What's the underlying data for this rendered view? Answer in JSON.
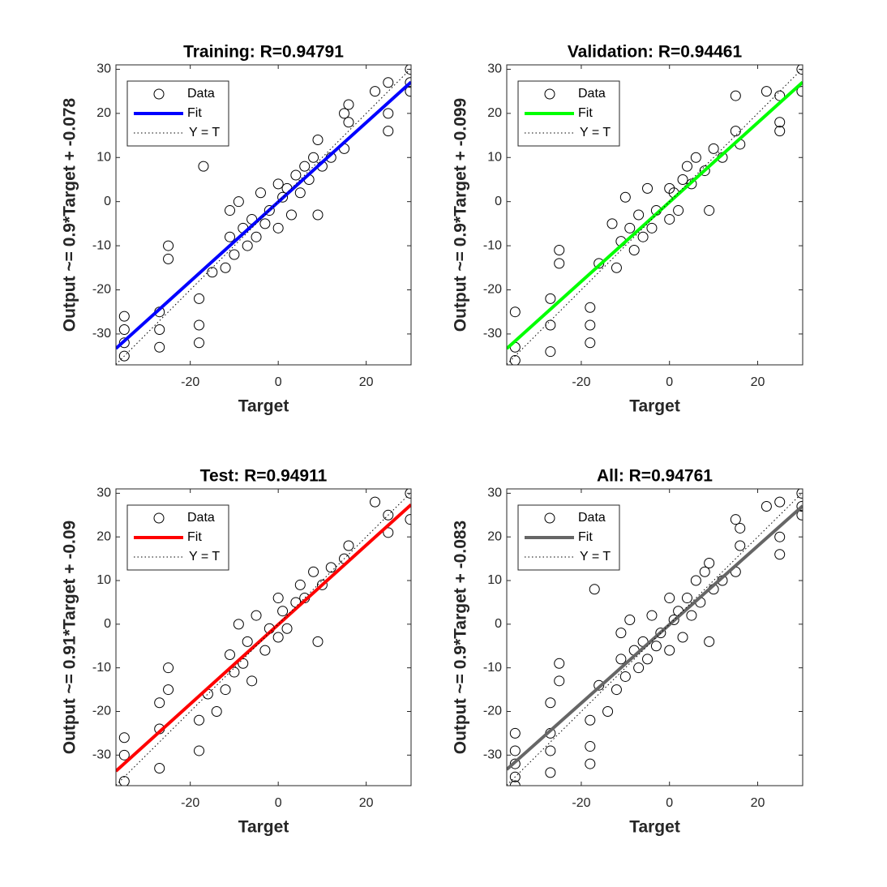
{
  "chart_data": [
    {
      "type": "regression",
      "title": "Training: R=0.94791",
      "xlabel": "Target",
      "ylabel": "Output ~= 0.9*Target + -0.078",
      "xlim": [
        -36.9,
        30.2
      ],
      "ylim": [
        -37,
        31
      ],
      "xticks": [
        -20,
        0,
        20
      ],
      "yticks": [
        -30,
        -20,
        -10,
        0,
        10,
        20,
        30
      ],
      "legend": "northwest",
      "grid": false,
      "series": [
        {
          "name": "Data",
          "kind": "scatter",
          "color": "#000000",
          "x": [
            -35,
            -35,
            -35,
            -35,
            -27,
            -27,
            -27,
            -25,
            -25,
            -18,
            -18,
            -18,
            -17,
            -15,
            -12,
            -11,
            -11,
            -10,
            -9,
            -8,
            -7,
            -6,
            -5,
            -4,
            -3,
            -2,
            0,
            0,
            1,
            2,
            3,
            4,
            5,
            6,
            7,
            8,
            9,
            9,
            10,
            12,
            15,
            15,
            16,
            16,
            22,
            25,
            25,
            25,
            30,
            30,
            30
          ],
          "values": [
            -35,
            -32,
            -29,
            -26,
            -33,
            -29,
            -25,
            -13,
            -10,
            -32,
            -28,
            -22,
            8,
            -16,
            -15,
            -8,
            -2,
            -12,
            0,
            -6,
            -10,
            -4,
            -8,
            2,
            -5,
            -2,
            -6,
            4,
            1,
            3,
            -3,
            6,
            2,
            8,
            5,
            10,
            -3,
            14,
            8,
            10,
            12,
            20,
            18,
            22,
            25,
            27,
            20,
            16,
            30,
            25,
            27
          ]
        },
        {
          "name": "Fit",
          "kind": "line",
          "color": "#0000ff",
          "x": [
            -36.9,
            30.2
          ],
          "values": [
            -33.29,
            27.1
          ]
        },
        {
          "name": "Y = T",
          "kind": "dotted",
          "color": "#000000",
          "x": [
            -36.9,
            30.2
          ],
          "values": [
            -36.9,
            30.2
          ]
        }
      ]
    },
    {
      "type": "regression",
      "title": "Validation: R=0.94461",
      "xlabel": "Target",
      "ylabel": "Output ~= 0.9*Target + -0.099",
      "xlim": [
        -36.9,
        30.2
      ],
      "ylim": [
        -37,
        31
      ],
      "xticks": [
        -20,
        0,
        20
      ],
      "yticks": [
        -30,
        -20,
        -10,
        0,
        10,
        20,
        30
      ],
      "legend": "northwest",
      "grid": false,
      "series": [
        {
          "name": "Data",
          "kind": "scatter",
          "color": "#000000",
          "x": [
            -35,
            -35,
            -35,
            -27,
            -27,
            -27,
            -25,
            -25,
            -18,
            -18,
            -18,
            -16,
            -13,
            -12,
            -11,
            -10,
            -9,
            -8,
            -7,
            -6,
            -5,
            -4,
            -3,
            0,
            0,
            1,
            2,
            3,
            4,
            5,
            6,
            8,
            9,
            10,
            12,
            15,
            15,
            16,
            22,
            25,
            25,
            25,
            30,
            30
          ],
          "values": [
            -36,
            -33,
            -25,
            -34,
            -28,
            -22,
            -14,
            -11,
            -32,
            -28,
            -24,
            -14,
            -5,
            -15,
            -9,
            1,
            -6,
            -11,
            -3,
            -8,
            3,
            -6,
            -2,
            -4,
            3,
            2,
            -2,
            5,
            8,
            4,
            10,
            7,
            -2,
            12,
            10,
            16,
            24,
            13,
            25,
            24,
            18,
            16,
            30,
            25
          ]
        },
        {
          "name": "Fit",
          "kind": "line",
          "color": "#00ff00",
          "x": [
            -36.9,
            30.2
          ],
          "values": [
            -33.31,
            27.08
          ]
        },
        {
          "name": "Y = T",
          "kind": "dotted",
          "color": "#000000",
          "x": [
            -36.9,
            30.2
          ],
          "values": [
            -36.9,
            30.2
          ]
        }
      ]
    },
    {
      "type": "regression",
      "title": "Test: R=0.94911",
      "xlabel": "Target",
      "ylabel": "Output ~= 0.91*Target + -0.09",
      "xlim": [
        -36.9,
        30.2
      ],
      "ylim": [
        -37,
        31
      ],
      "xticks": [
        -20,
        0,
        20
      ],
      "yticks": [
        -30,
        -20,
        -10,
        0,
        10,
        20,
        30
      ],
      "legend": "northwest",
      "grid": false,
      "series": [
        {
          "name": "Data",
          "kind": "scatter",
          "color": "#000000",
          "x": [
            -35,
            -35,
            -35,
            -27,
            -27,
            -27,
            -25,
            -25,
            -18,
            -18,
            -16,
            -14,
            -12,
            -11,
            -10,
            -9,
            -8,
            -7,
            -6,
            -5,
            -3,
            -2,
            0,
            0,
            1,
            2,
            4,
            5,
            6,
            8,
            9,
            10,
            12,
            15,
            16,
            22,
            25,
            25,
            30,
            30
          ],
          "values": [
            -36,
            -30,
            -26,
            -33,
            -24,
            -18,
            -15,
            -10,
            -29,
            -22,
            -16,
            -20,
            -15,
            -7,
            -11,
            0,
            -9,
            -4,
            -13,
            2,
            -6,
            -1,
            -3,
            6,
            3,
            -1,
            5,
            9,
            6,
            12,
            -4,
            9,
            13,
            15,
            18,
            28,
            25,
            21,
            30,
            24
          ]
        },
        {
          "name": "Fit",
          "kind": "line",
          "color": "#ff0000",
          "x": [
            -36.9,
            30.2
          ],
          "values": [
            -33.67,
            27.39
          ]
        },
        {
          "name": "Y = T",
          "kind": "dotted",
          "color": "#000000",
          "x": [
            -36.9,
            30.2
          ],
          "values": [
            -36.9,
            30.2
          ]
        }
      ]
    },
    {
      "type": "regression",
      "title": "All: R=0.94761",
      "xlabel": "Target",
      "ylabel": "Output ~= 0.9*Target + -0.083",
      "xlim": [
        -36.9,
        30.2
      ],
      "ylim": [
        -37,
        31
      ],
      "xticks": [
        -20,
        0,
        20
      ],
      "yticks": [
        -30,
        -20,
        -10,
        0,
        10,
        20,
        30
      ],
      "legend": "northwest",
      "grid": false,
      "series": [
        {
          "name": "Data",
          "kind": "scatter",
          "color": "#000000",
          "x": [
            -35,
            -35,
            -35,
            -35,
            -35,
            -27,
            -27,
            -27,
            -27,
            -25,
            -25,
            -18,
            -18,
            -18,
            -17,
            -16,
            -14,
            -12,
            -11,
            -11,
            -10,
            -9,
            -8,
            -7,
            -6,
            -5,
            -4,
            -3,
            -2,
            0,
            0,
            1,
            2,
            3,
            4,
            5,
            6,
            7,
            8,
            9,
            9,
            10,
            12,
            15,
            15,
            16,
            16,
            22,
            25,
            25,
            25,
            30,
            30,
            30
          ],
          "values": [
            -37,
            -35,
            -32,
            -29,
            -25,
            -34,
            -29,
            -25,
            -18,
            -13,
            -9,
            -32,
            -28,
            -22,
            8,
            -14,
            -20,
            -15,
            -8,
            -2,
            -12,
            1,
            -6,
            -10,
            -4,
            -8,
            2,
            -5,
            -2,
            -6,
            6,
            1,
            3,
            -3,
            6,
            2,
            10,
            5,
            12,
            -4,
            14,
            8,
            10,
            12,
            24,
            18,
            22,
            27,
            28,
            20,
            16,
            30,
            25,
            27
          ]
        },
        {
          "name": "Fit",
          "kind": "line",
          "color": "#666666",
          "x": [
            -36.9,
            30.2
          ],
          "values": [
            -33.29,
            27.1
          ]
        },
        {
          "name": "Y = T",
          "kind": "dotted",
          "color": "#000000",
          "x": [
            -36.9,
            30.2
          ],
          "values": [
            -36.9,
            30.2
          ]
        }
      ]
    }
  ]
}
